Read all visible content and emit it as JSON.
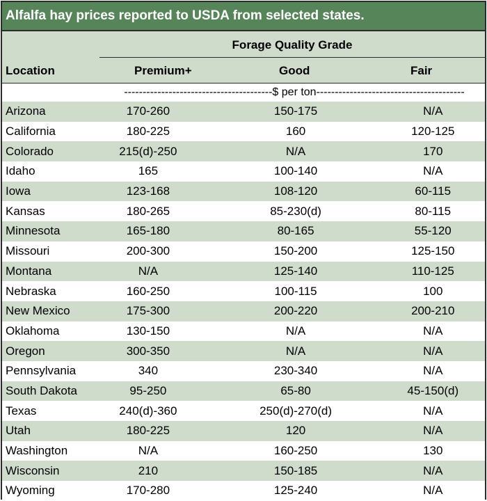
{
  "title": "Alfalfa hay prices reported to USDA from selected states.",
  "header": {
    "group_label": "Forage Quality Grade",
    "location_label": "Location",
    "columns": [
      "Premium+",
      "Good",
      "Fair"
    ]
  },
  "units": "----------------------------------------$ per ton----------------------------------------",
  "rows": [
    {
      "location": "Arizona",
      "premium": "170-260",
      "good": "150-175",
      "fair": "N/A"
    },
    {
      "location": "California",
      "premium": "180-225",
      "good": "160",
      "fair": "120-125"
    },
    {
      "location": "Colorado",
      "premium": "215(d)-250",
      "good": "N/A",
      "fair": "170"
    },
    {
      "location": "Idaho",
      "premium": "165",
      "good": "100-140",
      "fair": "N/A"
    },
    {
      "location": "Iowa",
      "premium": "123-168",
      "good": "108-120",
      "fair": "60-115"
    },
    {
      "location": "Kansas",
      "premium": "180-265",
      "good": "85-230(d)",
      "fair": "80-115"
    },
    {
      "location": "Minnesota",
      "premium": "165-180",
      "good": "80-165",
      "fair": "55-120"
    },
    {
      "location": "Missouri",
      "premium": "200-300",
      "good": "150-200",
      "fair": "125-150"
    },
    {
      "location": "Montana",
      "premium": "N/A",
      "good": "125-140",
      "fair": "110-125"
    },
    {
      "location": "Nebraska",
      "premium": "160-250",
      "good": "100-115",
      "fair": "100"
    },
    {
      "location": "New Mexico",
      "premium": "175-300",
      "good": "200-220",
      "fair": "200-210"
    },
    {
      "location": "Oklahoma",
      "premium": "130-150",
      "good": "N/A",
      "fair": "N/A"
    },
    {
      "location": "Oregon",
      "premium": "300-350",
      "good": "N/A",
      "fair": "N/A"
    },
    {
      "location": "Pennsylvania",
      "premium": "340",
      "good": "230-340",
      "fair": "N/A"
    },
    {
      "location": "South Dakota",
      "premium": "95-250",
      "good": "65-80",
      "fair": "45-150(d)"
    },
    {
      "location": "Texas",
      "premium": "240(d)-360",
      "good": "250(d)-270(d)",
      "fair": "N/A"
    },
    {
      "location": "Utah",
      "premium": "180-225",
      "good": "120",
      "fair": "N/A"
    },
    {
      "location": "Washington",
      "premium": "N/A",
      "good": "160-250",
      "fair": "130"
    },
    {
      "location": "Wisconsin",
      "premium": "210",
      "good": "150-185",
      "fair": "N/A"
    },
    {
      "location": "Wyoming",
      "premium": "170-280",
      "good": "125-240",
      "fair": "N/A"
    }
  ]
}
